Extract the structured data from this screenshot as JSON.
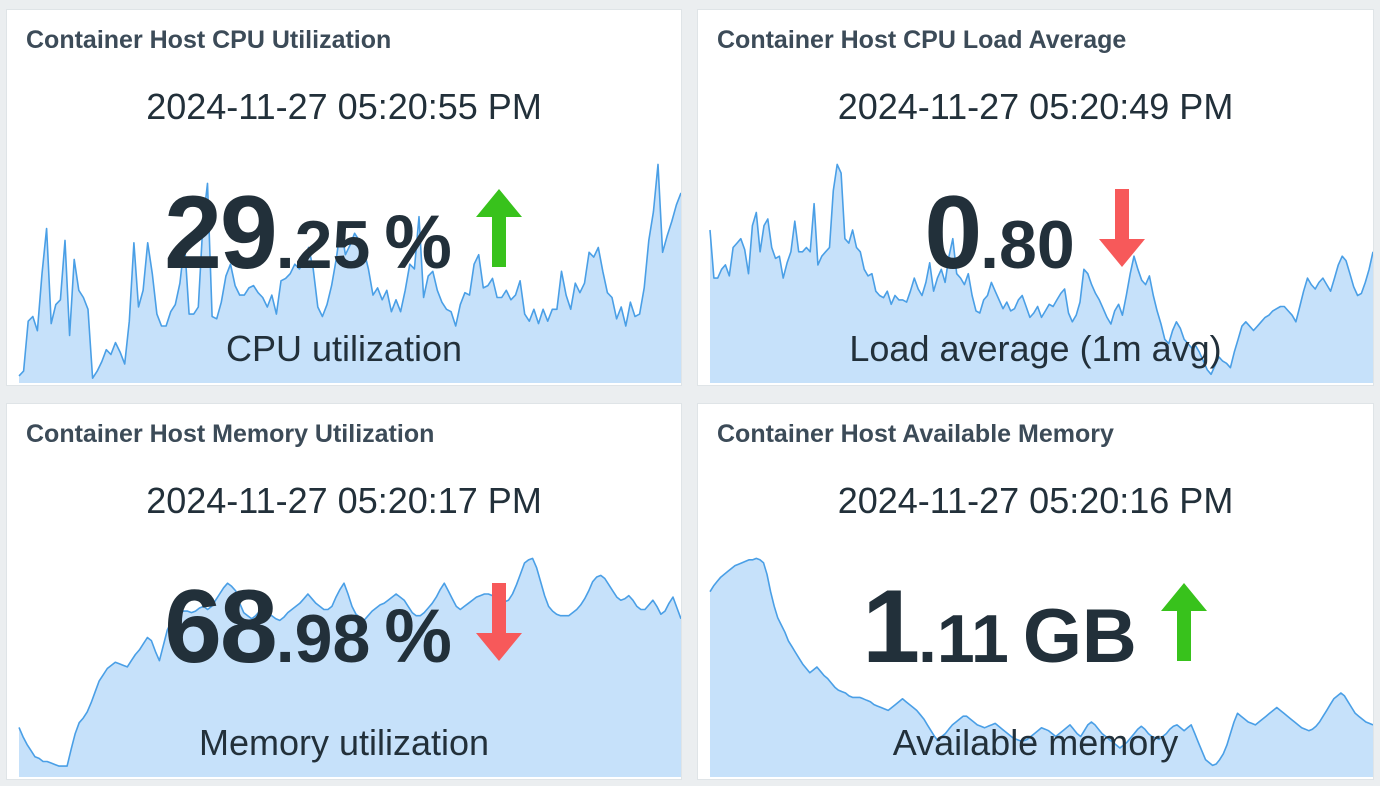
{
  "colors": {
    "up": "#38c21c",
    "down": "#f7595a",
    "text": "#22303a",
    "title": "#3c4b58",
    "spark_fill": "#c6e1fa",
    "spark_line": "#4a9fe6"
  },
  "widgets": [
    {
      "title": "Container Host CPU Utilization",
      "timestamp": "2024-11-27 05:20:55 PM",
      "value_int": "29",
      "value_dec": ".25",
      "unit": "%",
      "trend": "up",
      "trend_icon": "arrow-up-icon",
      "description": "CPU utilization",
      "sparkline": [
        3,
        5,
        26,
        28,
        22,
        46,
        65,
        25,
        33,
        35,
        60,
        20,
        52,
        39,
        36,
        31,
        2,
        5,
        9,
        14,
        12,
        17,
        13,
        8,
        26,
        59,
        32,
        39,
        59,
        46,
        29,
        24,
        24,
        30,
        33,
        42,
        59,
        29,
        29,
        32,
        67,
        84,
        28,
        27,
        34,
        45,
        50,
        41,
        37,
        37,
        40,
        41,
        38,
        36,
        32,
        37,
        29,
        43,
        44,
        46,
        50,
        48,
        51,
        57,
        48,
        32,
        28,
        33,
        41,
        52,
        66,
        54,
        58,
        63,
        60,
        56,
        48,
        37,
        40,
        35,
        39,
        30,
        35,
        30,
        39,
        50,
        48,
        70,
        36,
        45,
        47,
        39,
        34,
        31,
        30,
        24,
        33,
        38,
        37,
        50,
        54,
        40,
        41,
        44,
        36,
        36,
        39,
        35,
        37,
        43,
        29,
        26,
        31,
        25,
        31,
        26,
        31,
        31,
        47,
        37,
        31,
        42,
        38,
        42,
        55,
        53,
        57,
        47,
        38,
        36,
        27,
        32,
        24,
        34,
        28,
        29,
        40,
        60,
        72,
        92,
        55,
        62,
        68,
        75,
        80
      ]
    },
    {
      "title": "Container Host CPU Load Average",
      "timestamp": "2024-11-27 05:20:49 PM",
      "value_int": "0",
      "value_dec": ".80",
      "unit": "",
      "trend": "down",
      "trend_icon": "arrow-down-icon",
      "description": "Load average (1m avg)",
      "sparkline": [
        70,
        48,
        48,
        52,
        54,
        49,
        62,
        64,
        66,
        61,
        50,
        72,
        78,
        60,
        72,
        75,
        62,
        57,
        58,
        48,
        55,
        60,
        74,
        60,
        60,
        62,
        60,
        82,
        54,
        58,
        60,
        62,
        88,
        100,
        96,
        66,
        64,
        70,
        62,
        60,
        52,
        49,
        50,
        42,
        40,
        39,
        42,
        36,
        40,
        38,
        38,
        37,
        42,
        48,
        43,
        40,
        46,
        55,
        42,
        48,
        52,
        46,
        58,
        66,
        50,
        48,
        45,
        50,
        40,
        33,
        32,
        38,
        40,
        46,
        42,
        38,
        34,
        37,
        33,
        34,
        38,
        40,
        35,
        30,
        32,
        35,
        30,
        33,
        36,
        35,
        38,
        41,
        43,
        32,
        28,
        31,
        37,
        52,
        50,
        45,
        41,
        38,
        34,
        30,
        27,
        33,
        36,
        31,
        40,
        50,
        58,
        52,
        47,
        45,
        49,
        40,
        33,
        27,
        20,
        18,
        24,
        28,
        25,
        20,
        18,
        16,
        17,
        14,
        10,
        6,
        4,
        8,
        12,
        10,
        9,
        7,
        14,
        20,
        26,
        28,
        26,
        24,
        26,
        28,
        30,
        31,
        33,
        34,
        35,
        35,
        33,
        31,
        28,
        35,
        42,
        48,
        45,
        43,
        46,
        48,
        45,
        42,
        48,
        54,
        58,
        56,
        50,
        44,
        40,
        41,
        46,
        52,
        60
      ]
    },
    {
      "title": "Container Host Memory Utilization",
      "timestamp": "2024-11-27 05:20:17 PM",
      "value_int": "68",
      "value_dec": ".98",
      "unit": "%",
      "trend": "down",
      "trend_icon": "arrow-down-icon",
      "description": "Memory utilization",
      "sparkline": [
        32,
        26,
        21,
        17,
        13,
        12,
        10,
        10,
        9,
        8,
        7,
        7,
        7,
        18,
        28,
        35,
        38,
        42,
        48,
        55,
        62,
        66,
        70,
        72,
        74,
        73,
        72,
        71,
        75,
        79,
        82,
        86,
        90,
        88,
        81,
        75,
        85,
        95,
        100,
        104,
        106,
        107,
        107,
        106,
        107,
        109,
        110,
        108,
        110,
        114,
        118,
        122,
        125,
        123,
        120,
        112,
        106,
        104,
        102,
        104,
        107,
        108,
        106,
        104,
        102,
        101,
        103,
        106,
        108,
        110,
        112,
        115,
        118,
        115,
        112,
        110,
        108,
        108,
        110,
        116,
        121,
        125,
        118,
        110,
        105,
        103,
        101,
        104,
        107,
        109,
        111,
        112,
        114,
        116,
        118,
        116,
        114,
        110,
        106,
        104,
        104,
        106,
        109,
        112,
        116,
        121,
        125,
        120,
        115,
        110,
        108,
        110,
        112,
        114,
        116,
        117,
        118,
        118,
        117,
        116,
        114,
        113,
        114,
        118,
        124,
        131,
        138,
        140,
        141,
        135,
        126,
        117,
        110,
        107,
        105,
        104,
        104,
        104,
        106,
        108,
        111,
        115,
        120,
        126,
        129,
        130,
        128,
        124,
        120,
        116,
        114,
        115,
        117,
        114,
        110,
        108,
        108,
        111,
        114,
        110,
        105,
        107,
        112,
        116,
        109,
        102
      ]
    },
    {
      "title": "Container Host Available Memory",
      "timestamp": "2024-11-27 05:20:16 PM",
      "value_int": "1",
      "value_dec": ".11",
      "unit": "GB",
      "trend": "up",
      "trend_icon": "arrow-up-icon",
      "description": "Available memory",
      "sparkline": [
        128,
        132,
        135,
        138,
        140,
        142,
        144,
        146,
        147,
        148,
        149,
        150,
        150,
        151,
        150,
        148,
        140,
        128,
        118,
        110,
        105,
        100,
        94,
        90,
        86,
        82,
        78,
        75,
        72,
        74,
        76,
        73,
        70,
        68,
        65,
        62,
        60,
        59,
        58,
        56,
        55,
        55,
        55,
        54,
        53,
        52,
        50,
        49,
        48,
        47,
        46,
        48,
        50,
        52,
        54,
        52,
        50,
        48,
        46,
        43,
        40,
        36,
        32,
        28,
        25,
        28,
        30,
        33,
        36,
        38,
        40,
        42,
        42,
        40,
        38,
        36,
        35,
        34,
        35,
        36,
        37,
        35,
        33,
        31,
        29,
        27,
        26,
        25,
        25,
        26,
        28,
        30,
        32,
        34,
        33,
        32,
        30,
        28,
        30,
        32,
        34,
        36,
        33,
        30,
        28,
        32,
        36,
        38,
        36,
        33,
        30,
        28,
        26,
        24,
        22,
        20,
        22,
        24,
        27,
        30,
        33,
        35,
        33,
        30,
        28,
        27,
        26,
        28,
        30,
        33,
        35,
        36,
        34,
        32,
        34,
        36,
        30,
        24,
        18,
        12,
        10,
        8,
        9,
        12,
        16,
        22,
        30,
        38,
        44,
        42,
        40,
        38,
        37,
        36,
        38,
        40,
        42,
        44,
        46,
        48,
        46,
        44,
        42,
        40,
        38,
        36,
        34,
        33,
        32,
        33,
        35,
        38,
        42,
        46,
        50,
        54,
        56,
        58,
        56,
        52,
        48,
        44,
        42,
        40,
        38,
        37,
        36
      ]
    }
  ]
}
